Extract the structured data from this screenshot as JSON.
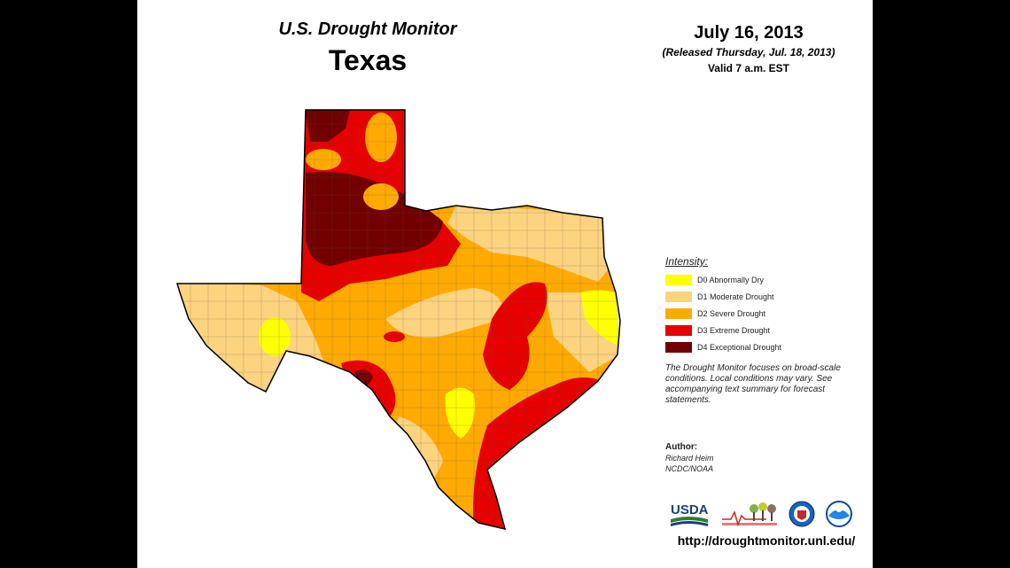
{
  "header": {
    "monitor_title": "U.S. Drought Monitor",
    "region": "Texas",
    "date": "July 16, 2013",
    "released": "(Released Thursday, Jul. 18, 2013)",
    "valid": "Valid 7 a.m. EST"
  },
  "legend": {
    "title": "Intensity:",
    "items": [
      {
        "label": "D0 Abnormally Dry",
        "color": "#ffff00"
      },
      {
        "label": "D1 Moderate Drought",
        "color": "#fcd37f"
      },
      {
        "label": "D2 Severe Drought",
        "color": "#ffaa00"
      },
      {
        "label": "D3 Extreme Drought",
        "color": "#e60000"
      },
      {
        "label": "D4 Exceptional Drought",
        "color": "#730000"
      }
    ]
  },
  "note": "The Drought Monitor focuses on broad-scale conditions. Local conditions may vary. See accompanying text summary for forecast statements.",
  "author": {
    "heading": "Author:",
    "name": "Richard Heim",
    "org": "NCDC/NOAA"
  },
  "logos": {
    "usda": "USDA"
  },
  "url": "http://droughtmonitor.unl.edu/"
}
